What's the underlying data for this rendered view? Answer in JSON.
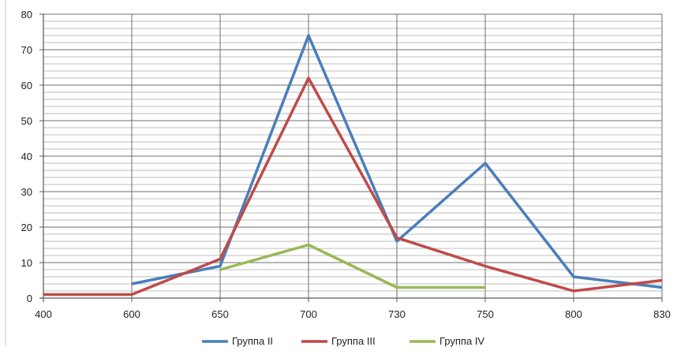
{
  "chart_data": {
    "type": "line",
    "categories": [
      "400",
      "600",
      "650",
      "700",
      "730",
      "750",
      "800",
      "830"
    ],
    "ylim": [
      0,
      80
    ],
    "y_major_ticks": [
      0,
      10,
      20,
      30,
      40,
      50,
      60,
      70,
      80
    ],
    "y_minor_step": 2,
    "grid": true,
    "legend_position": "bottom",
    "series": [
      {
        "name": "Группа II",
        "color": "#4a7ebb",
        "values": [
          null,
          4,
          9,
          74,
          16,
          38,
          6,
          3
        ]
      },
      {
        "name": "Группа III",
        "color": "#be4b48",
        "values": [
          1,
          1,
          11,
          62,
          17,
          9,
          2,
          5
        ]
      },
      {
        "name": "Группа IV",
        "color": "#98b954",
        "values": [
          null,
          null,
          8,
          15,
          3,
          3,
          null,
          null
        ]
      }
    ]
  }
}
